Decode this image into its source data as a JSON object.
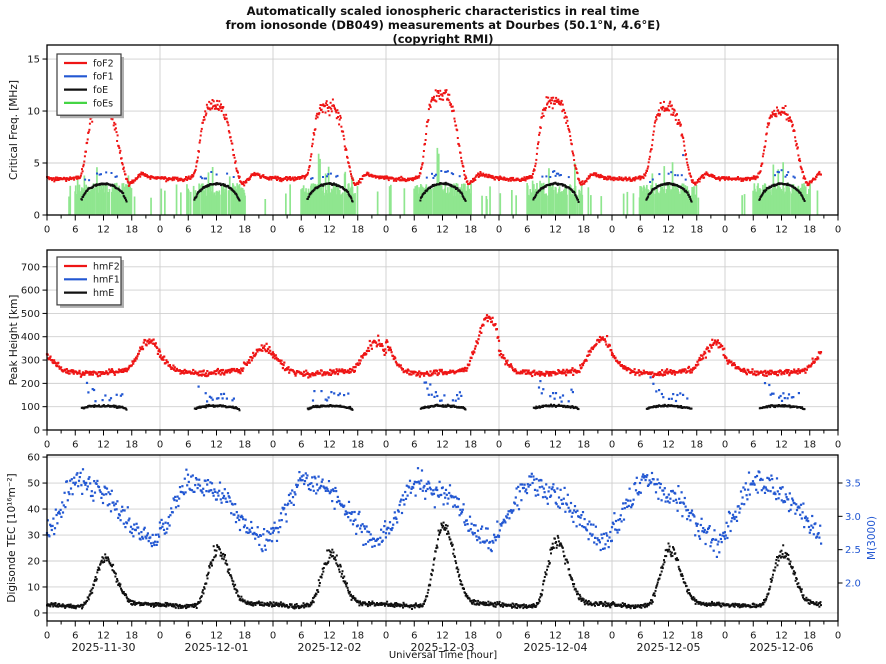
{
  "title": {
    "line1": "Automatically scaled ionospheric characteristics in real time",
    "line2": "from ionosonde (DB049) measurements at Dourbes (50.1°N, 4.6°E)",
    "line3": "(copyright RMI)"
  },
  "x_axis": {
    "label": "Universal Time [hour]",
    "hour_ticks": [
      0,
      6,
      12,
      18
    ],
    "minor_step": 3,
    "total_hours": 168,
    "data_end_hour": 164.5,
    "days": [
      "2025-11-30",
      "2025-12-01",
      "2025-12-02",
      "2025-12-03",
      "2025-12-04",
      "2025-12-05",
      "2025-12-06"
    ]
  },
  "colors": {
    "red": "#ee1515",
    "blue": "#2257d2",
    "black": "#111111",
    "green_bar": "#8fe68f",
    "green_legend": "#44d544",
    "grid": "#cfcfcf",
    "frame": "#000000",
    "legend_shadow": "#b0b0b0",
    "legend_border": "#3c3c3c"
  },
  "chart_data": {
    "type": "scatter",
    "panels": [
      {
        "id": "critical-frequency",
        "ylabel": "Critical Freq. [MHz]",
        "ylim": [
          0,
          16.35
        ],
        "yticks": [
          0,
          5,
          10,
          15
        ],
        "legend": [
          {
            "label": "foF2",
            "color": "#ee1515"
          },
          {
            "label": "foF1",
            "color": "#2257d2"
          },
          {
            "label": "foE",
            "color": "#111111"
          },
          {
            "label": "foEs",
            "color": "#44d544"
          }
        ],
        "series": [
          {
            "name": "foEs",
            "style": "bars",
            "color": "#8fe68f",
            "bar_width": 1.7,
            "day_window": [
              5.9,
              18.2
            ],
            "day_prob": 0.8,
            "step": 0.13,
            "h_base": 1.8,
            "h_rand": 1.3,
            "spike_prob": 0.05,
            "spike_add": 2.6,
            "night_prob": 0.05,
            "night_base": 1.5,
            "night_rand": 1.5,
            "extra_spikes": [
              [
                10.6,
                4.6
              ],
              [
                34.3,
                4.1
              ],
              [
                57.7,
                5.9
              ],
              [
                58.0,
                5.4
              ],
              [
                82.9,
                6.45
              ],
              [
                83.2,
                5.9
              ],
              [
                106.6,
                4.5
              ],
              [
                131.1,
                4.7
              ],
              [
                155.3,
                4.4
              ]
            ]
          },
          {
            "name": "foE",
            "style": "dots",
            "color": "#111111",
            "size": 2,
            "window": [
              7.3,
              16.9
            ],
            "step": 0.12,
            "noise": 0.07,
            "base": [
              [
                7.3,
                1.45
              ],
              [
                8,
                2.1
              ],
              [
                9,
                2.55
              ],
              [
                10,
                2.8
              ],
              [
                11,
                2.95
              ],
              [
                12,
                3.02
              ],
              [
                13,
                2.97
              ],
              [
                14,
                2.82
              ],
              [
                15,
                2.55
              ],
              [
                16,
                2.15
              ],
              [
                16.9,
                1.35
              ]
            ]
          },
          {
            "name": "foF1",
            "style": "dots",
            "color": "#2257d2",
            "size": 2,
            "window": [
              8.1,
              15.7
            ],
            "step": 0.28,
            "prob": 0.4,
            "noise": 0.12,
            "spread": 0.55,
            "outlier_prob": 0.025,
            "outlier_add": 2.2,
            "base": [
              [
                8.1,
                3.15
              ],
              [
                10,
                3.5
              ],
              [
                12,
                3.7
              ],
              [
                13.5,
                3.6
              ],
              [
                15.7,
                3.3
              ]
            ]
          },
          {
            "name": "foF2",
            "style": "dots",
            "color": "#ee1515",
            "size": 2,
            "step": 0.12,
            "noise": 0.15,
            "noise_peak": 0.35,
            "base": [
              [
                0,
                3.6
              ],
              [
                1.5,
                3.45
              ],
              [
                3,
                3.5
              ],
              [
                4.5,
                3.4
              ],
              [
                6,
                3.55
              ],
              [
                7,
                3.7
              ],
              [
                17.6,
                2.95
              ],
              [
                18.3,
                3.25
              ],
              [
                20,
                4.0
              ],
              [
                21.5,
                3.7
              ],
              [
                23,
                3.55
              ],
              [
                24,
                3.6
              ]
            ],
            "bump": [
              [
                7,
                0
              ],
              [
                7.6,
                0.1
              ],
              [
                8.4,
                0.45
              ],
              [
                9.2,
                0.8
              ],
              [
                10,
                0.93
              ],
              [
                11,
                1.0
              ],
              [
                12,
                0.98
              ],
              [
                12.8,
                1.0
              ],
              [
                13.6,
                0.92
              ],
              [
                14.4,
                0.8
              ],
              [
                15.2,
                0.55
              ],
              [
                16,
                0.28
              ],
              [
                16.8,
                0.08
              ],
              [
                17.4,
                0
              ]
            ],
            "day_amps": [
              6.8,
              7.2,
              7.1,
              8.3,
              7.6,
              7.0,
              6.6
            ]
          }
        ]
      },
      {
        "id": "peak-height",
        "ylabel": "Peak Height [km]",
        "ylim": [
          0,
          772
        ],
        "yticks": [
          0,
          100,
          200,
          300,
          400,
          500,
          600,
          700
        ],
        "legend": [
          {
            "label": "hmF2",
            "color": "#ee1515"
          },
          {
            "label": "hmF1",
            "color": "#2257d2"
          },
          {
            "label": "hmE",
            "color": "#111111"
          }
        ],
        "series": [
          {
            "name": "hmE",
            "style": "dots",
            "color": "#111111",
            "size": 2,
            "window": [
              7.4,
              16.9
            ],
            "step": 0.13,
            "noise": 3.5,
            "base": [
              [
                7.4,
                93
              ],
              [
                9,
                100
              ],
              [
                11,
                104
              ],
              [
                13,
                103
              ],
              [
                15,
                99
              ],
              [
                16.3,
                95
              ],
              [
                16.9,
                89
              ]
            ]
          },
          {
            "name": "hmF1",
            "style": "dots",
            "color": "#2257d2",
            "size": 2.2,
            "window": [
              8.2,
              16.3
            ],
            "step": 0.3,
            "prob": 0.5,
            "noise": 8,
            "spread": 45,
            "early_boost": [
              10.8,
              28
            ],
            "base": [
              [
                8.2,
                125
              ],
              [
                10,
                120
              ],
              [
                12,
                118
              ],
              [
                14,
                122
              ],
              [
                16.3,
                128
              ]
            ]
          },
          {
            "name": "hmF2",
            "style": "dots",
            "color": "#ee1515",
            "size": 2.2,
            "step": 0.15,
            "noise": 10,
            "noise_peak": 8,
            "base": [
              [
                0,
                278
              ],
              [
                2,
                262
              ],
              [
                4,
                250
              ],
              [
                6,
                246
              ],
              [
                8,
                241
              ],
              [
                10,
                243
              ],
              [
                12,
                247
              ],
              [
                14,
                249
              ],
              [
                16,
                253
              ],
              [
                17.5,
                258
              ],
              [
                19,
                266
              ],
              [
                21,
                276
              ],
              [
                22.5,
                282
              ],
              [
                24,
                278
              ]
            ],
            "bump": [
              [
                0,
                0.5
              ],
              [
                1.2,
                0.3
              ],
              [
                2.8,
                0.08
              ],
              [
                4.2,
                0
              ],
              [
                17,
                0
              ],
              [
                18.4,
                0.3
              ],
              [
                19.8,
                0.66
              ],
              [
                21,
                0.95
              ],
              [
                21.8,
                1.0
              ],
              [
                22.6,
                0.93
              ],
              [
                23.4,
                0.72
              ],
              [
                24,
                0.5
              ]
            ],
            "day_amps": [
              105,
              75,
              100,
              205,
              115,
              95,
              70
            ]
          }
        ]
      },
      {
        "id": "tec-m3000",
        "ylabel": "Digisonde TEC [10¹⁶m⁻²]",
        "ylim": [
          -3.1,
          60.8
        ],
        "yticks": [
          0,
          10,
          20,
          30,
          40,
          50,
          60
        ],
        "right_axis": {
          "label": "M(3000)",
          "color": "#2257d2",
          "ylim": [
            1.43,
            3.92
          ],
          "ticks": [
            2.0,
            2.5,
            3.0,
            3.5
          ]
        },
        "series": [
          {
            "name": "M3000",
            "style": "dots",
            "color": "#2257d2",
            "size": 2.2,
            "axis": "right",
            "step": 0.17,
            "noise": 0.15,
            "base": [
              [
                0,
                2.78
              ],
              [
                1.5,
                2.92
              ],
              [
                3,
                3.15
              ],
              [
                5,
                3.42
              ],
              [
                7,
                3.52
              ],
              [
                9,
                3.46
              ],
              [
                11,
                3.37
              ],
              [
                13,
                3.3
              ],
              [
                15,
                3.16
              ],
              [
                16.5,
                3.02
              ],
              [
                18,
                2.9
              ],
              [
                19.5,
                2.78
              ],
              [
                21,
                2.68
              ],
              [
                22.5,
                2.6
              ],
              [
                24,
                2.78
              ]
            ]
          },
          {
            "name": "TEC",
            "style": "dots",
            "color": "#111111",
            "size": 2,
            "step": 0.12,
            "noise": 0.7,
            "noise_peak": 1.6,
            "base": [
              [
                0,
                3.2
              ],
              [
                2,
                3.0
              ],
              [
                4,
                2.7
              ],
              [
                5.5,
                2.5
              ],
              [
                7,
                2.8
              ],
              [
                17,
                3.0
              ],
              [
                19,
                3.3
              ],
              [
                21,
                3.4
              ],
              [
                24,
                3.2
              ]
            ],
            "bump": [
              [
                7.8,
                0
              ],
              [
                8.6,
                0.1
              ],
              [
                9.4,
                0.3
              ],
              [
                10.2,
                0.55
              ],
              [
                11,
                0.8
              ],
              [
                11.8,
                0.95
              ],
              [
                12.4,
                1.0
              ],
              [
                13.2,
                0.93
              ],
              [
                14,
                0.75
              ],
              [
                15,
                0.5
              ],
              [
                16,
                0.28
              ],
              [
                17,
                0.12
              ],
              [
                18.5,
                0.03
              ],
              [
                20,
                0
              ]
            ],
            "day_amps": [
              18,
              22,
              20,
              31,
              25,
              22,
              21
            ]
          }
        ]
      }
    ]
  }
}
